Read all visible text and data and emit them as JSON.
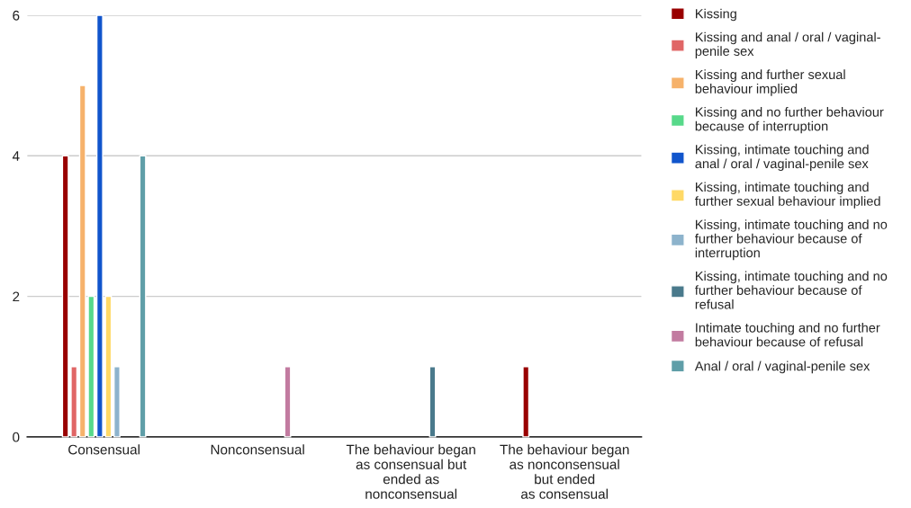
{
  "chart_data": {
    "type": "bar",
    "categories": [
      "Consensual",
      "Nonconsensual",
      "The behaviour began\nas consensual but\nended as\nnonconsensual",
      "The behaviour began\nas nonconsensual\nbut ended\nas consensual"
    ],
    "series": [
      {
        "name": "Kissing",
        "color": "#990000",
        "values": [
          4,
          null,
          null,
          1
        ]
      },
      {
        "name": "Kissing and anal / oral / vaginal-\npenile sex",
        "color": "#e06666",
        "values": [
          1,
          null,
          null,
          null
        ]
      },
      {
        "name": "Kissing and further sexual\nbehaviour implied",
        "color": "#f6b26b",
        "values": [
          5,
          null,
          null,
          null
        ]
      },
      {
        "name": "Kissing and no further behaviour\nbecause of interruption",
        "color": "#57d98a",
        "values": [
          2,
          null,
          null,
          null
        ]
      },
      {
        "name": "Kissing, intimate touching and\nanal / oral / vaginal-penile sex",
        "color": "#1155cc",
        "values": [
          6,
          null,
          null,
          null
        ]
      },
      {
        "name": "Kissing, intimate touching and\nfurther sexual behaviour implied",
        "color": "#ffd966",
        "values": [
          2,
          null,
          null,
          null
        ]
      },
      {
        "name": "Kissing, intimate touching and no\nfurther behaviour because of\ninterruption",
        "color": "#8db3cc",
        "values": [
          1,
          null,
          null,
          null
        ]
      },
      {
        "name": "Kissing, intimate touching and no\nfurther behaviour because of\nrefusal",
        "color": "#4a7a8c",
        "values": [
          null,
          null,
          1,
          null
        ]
      },
      {
        "name": "Intimate touching and no further\nbehaviour because of refusal",
        "color": "#c27ba0",
        "values": [
          null,
          1,
          null,
          null
        ]
      },
      {
        "name": "Anal / oral / vaginal-penile sex",
        "color": "#5f9ea8",
        "values": [
          4,
          null,
          null,
          null
        ]
      }
    ],
    "ylim": [
      0,
      6
    ],
    "yticks": [
      0,
      2,
      4,
      6
    ],
    "grid": "y",
    "legend": "right"
  }
}
